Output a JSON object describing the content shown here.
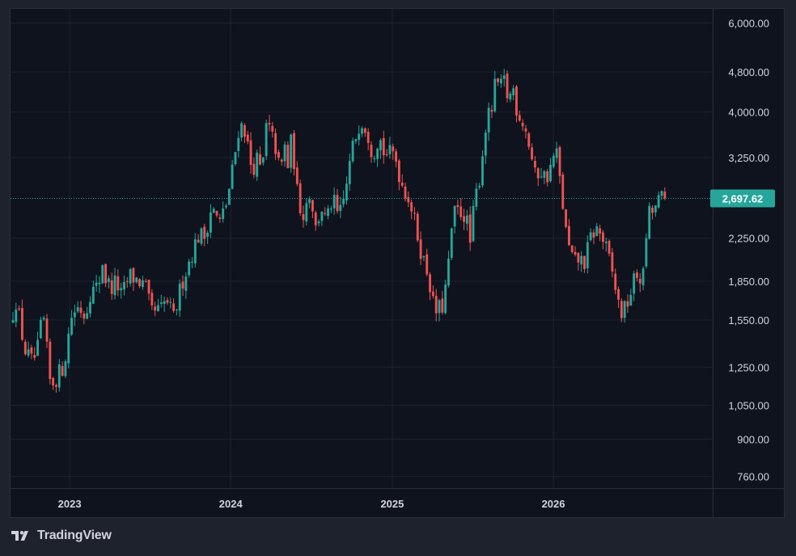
{
  "chart_data": {
    "type": "candlestick",
    "title": "",
    "xlabel": "",
    "ylabel": "",
    "scale": "log",
    "grid": true,
    "ylim": [
      720,
      6400
    ],
    "yticks": [
      {
        "value": 6000,
        "label": "6,000.00"
      },
      {
        "value": 4800,
        "label": "4,800.00"
      },
      {
        "value": 4000,
        "label": "4,000.00"
      },
      {
        "value": 3250,
        "label": "3,250.00"
      },
      {
        "value": 2250,
        "label": "2,250.00"
      },
      {
        "value": 1850,
        "label": "1,850.00"
      },
      {
        "value": 1550,
        "label": "1,550.00"
      },
      {
        "value": 1250,
        "label": "1,250.00"
      },
      {
        "value": 1050,
        "label": "1,050.00"
      },
      {
        "value": 900,
        "label": "900.00"
      },
      {
        "value": 760,
        "label": "760.00"
      }
    ],
    "xticks": [
      {
        "value": "2023-01-01",
        "label": "2023"
      },
      {
        "value": "2024-01-01",
        "label": "2024"
      },
      {
        "value": "2025-01-01",
        "label": "2025"
      },
      {
        "value": "2026-01-01",
        "label": "2026"
      }
    ],
    "x_range": [
      "2022-08-20",
      "2026-12-28"
    ],
    "last_price": {
      "value": 2697.62,
      "label": "2,697.62"
    },
    "up_color": "#26a69a",
    "down_color": "#ef5350",
    "background_color": "#0f131e",
    "grid_color": "#1e2330",
    "anchors": [
      [
        "2022-08-22",
        1520
      ],
      [
        "2022-09-05",
        1700
      ],
      [
        "2022-09-25",
        1350
      ],
      [
        "2022-10-10",
        1280
      ],
      [
        "2022-10-22",
        1320
      ],
      [
        "2022-11-05",
        1600
      ],
      [
        "2022-11-22",
        1150
      ],
      [
        "2022-12-08",
        1200
      ],
      [
        "2022-12-22",
        1260
      ],
      [
        "2023-01-10",
        1600
      ],
      [
        "2023-01-26",
        1650
      ],
      [
        "2023-02-08",
        1580
      ],
      [
        "2023-02-20",
        1760
      ],
      [
        "2023-03-10",
        1800
      ],
      [
        "2023-03-20",
        2020
      ],
      [
        "2023-03-28",
        1850
      ],
      [
        "2023-04-10",
        1800
      ],
      [
        "2023-04-20",
        1850
      ],
      [
        "2023-05-02",
        1720
      ],
      [
        "2023-05-20",
        1900
      ],
      [
        "2023-06-10",
        1850
      ],
      [
        "2023-06-25",
        1800
      ],
      [
        "2023-07-08",
        1600
      ],
      [
        "2023-07-30",
        1620
      ],
      [
        "2023-08-12",
        1700
      ],
      [
        "2023-08-28",
        1560
      ],
      [
        "2023-09-15",
        1830
      ],
      [
        "2023-10-10",
        2120
      ],
      [
        "2023-10-25",
        2300
      ],
      [
        "2023-11-05",
        2250
      ],
      [
        "2023-11-22",
        2600
      ],
      [
        "2023-12-10",
        2400
      ],
      [
        "2023-12-28",
        2680
      ],
      [
        "2024-01-12",
        3200
      ],
      [
        "2024-01-24",
        3800
      ],
      [
        "2024-02-05",
        3700
      ],
      [
        "2024-02-22",
        3050
      ],
      [
        "2024-03-02",
        3250
      ],
      [
        "2024-03-15",
        3000
      ],
      [
        "2024-03-26",
        3800
      ],
      [
        "2024-04-05",
        3600
      ],
      [
        "2024-04-15",
        3400
      ],
      [
        "2024-04-26",
        3000
      ],
      [
        "2024-05-05",
        3450
      ],
      [
        "2024-05-14",
        3100
      ],
      [
        "2024-05-22",
        3600
      ],
      [
        "2024-06-02",
        2800
      ],
      [
        "2024-06-15",
        2500
      ],
      [
        "2024-07-03",
        2800
      ],
      [
        "2024-07-15",
        2350
      ],
      [
        "2024-07-28",
        2600
      ],
      [
        "2024-08-08",
        2400
      ],
      [
        "2024-08-22",
        2700
      ],
      [
        "2024-09-05",
        2450
      ],
      [
        "2024-09-18",
        2700
      ],
      [
        "2024-10-05",
        3350
      ],
      [
        "2024-10-25",
        3900
      ],
      [
        "2024-11-08",
        3700
      ],
      [
        "2024-11-22",
        3300
      ],
      [
        "2024-12-05",
        3600
      ],
      [
        "2024-12-18",
        3300
      ],
      [
        "2025-01-10",
        3300
      ],
      [
        "2025-01-25",
        2900
      ],
      [
        "2025-02-12",
        2700
      ],
      [
        "2025-03-02",
        2300
      ],
      [
        "2025-03-15",
        2050
      ],
      [
        "2025-03-28",
        1900
      ],
      [
        "2025-04-10",
        1600
      ],
      [
        "2025-04-28",
        1650
      ],
      [
        "2025-05-10",
        1900
      ],
      [
        "2025-05-22",
        2500
      ],
      [
        "2025-06-05",
        2550
      ],
      [
        "2025-06-20",
        2500
      ],
      [
        "2025-06-30",
        2200
      ],
      [
        "2025-07-10",
        2650
      ],
      [
        "2025-07-22",
        3000
      ],
      [
        "2025-08-05",
        3800
      ],
      [
        "2025-08-20",
        4100
      ],
      [
        "2025-08-28",
        4700
      ],
      [
        "2025-09-05",
        4400
      ],
      [
        "2025-09-15",
        4600
      ],
      [
        "2025-09-25",
        4200
      ],
      [
        "2025-10-05",
        4500
      ],
      [
        "2025-10-15",
        4000
      ],
      [
        "2025-10-30",
        3800
      ],
      [
        "2025-11-12",
        3400
      ],
      [
        "2025-11-25",
        2950
      ],
      [
        "2025-12-05",
        3100
      ],
      [
        "2025-12-18",
        2950
      ],
      [
        "2025-12-30",
        3100
      ],
      [
        "2026-01-10",
        3400
      ],
      [
        "2026-01-22",
        2800
      ],
      [
        "2026-02-05",
        2200
      ],
      [
        "2026-02-20",
        2000
      ],
      [
        "2026-03-05",
        2050
      ],
      [
        "2026-03-15",
        2000
      ],
      [
        "2026-03-30",
        2250
      ],
      [
        "2026-04-10",
        2350
      ],
      [
        "2026-04-20",
        2300
      ],
      [
        "2026-04-30",
        2200
      ],
      [
        "2026-05-10",
        2050
      ],
      [
        "2026-05-22",
        1850
      ],
      [
        "2026-06-05",
        1600
      ],
      [
        "2026-06-15",
        1620
      ],
      [
        "2026-06-28",
        1750
      ],
      [
        "2026-07-10",
        1900
      ],
      [
        "2026-07-22",
        1880
      ],
      [
        "2026-07-30",
        1900
      ],
      [
        "2026-08-05",
        2500
      ],
      [
        "2026-08-20",
        2550
      ],
      [
        "2026-09-05",
        2700
      ],
      [
        "2026-09-12",
        2697.62
      ]
    ]
  },
  "brand": {
    "name": "TradingView",
    "logo_icon": "tradingview-logo-icon"
  }
}
